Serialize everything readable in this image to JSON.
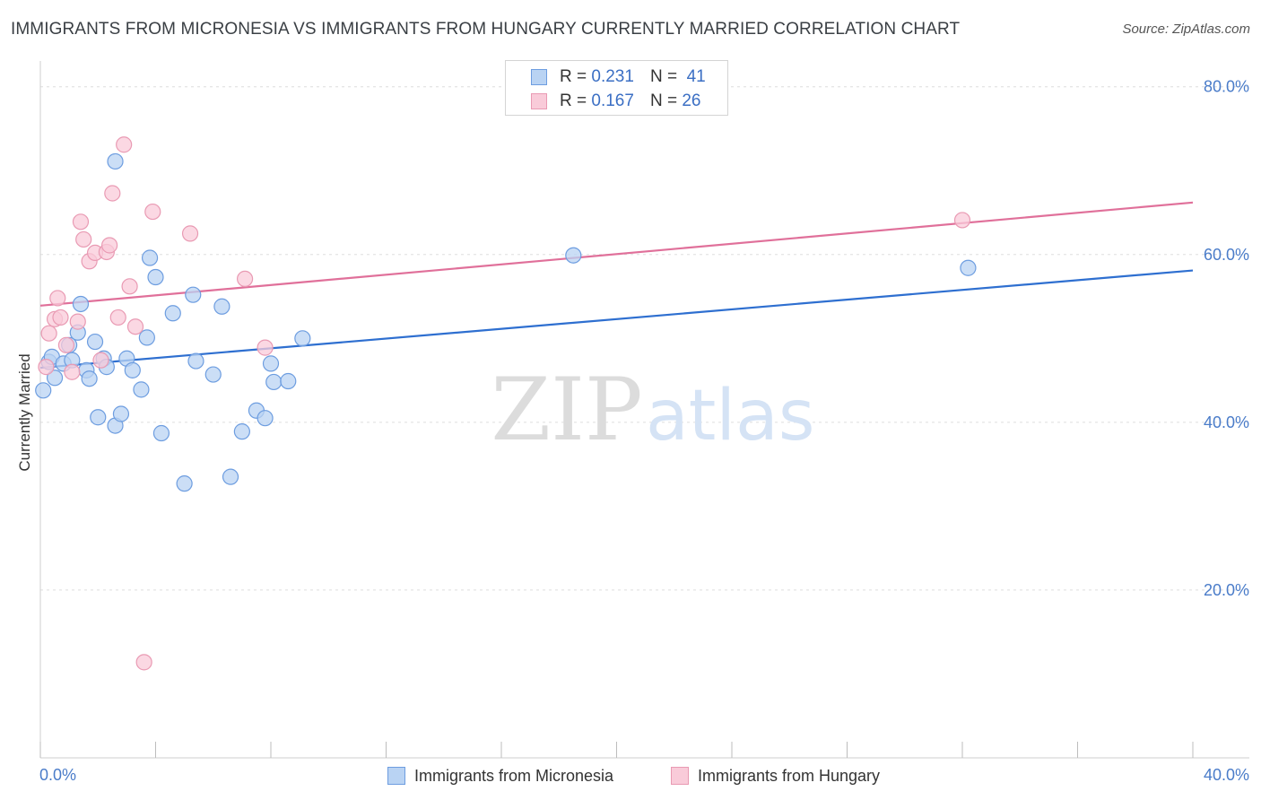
{
  "title": "IMMIGRANTS FROM MICRONESIA VS IMMIGRANTS FROM HUNGARY CURRENTLY MARRIED CORRELATION CHART",
  "source": "Source: ZipAtlas.com",
  "watermark": {
    "zip": "ZIP",
    "atlas": "atlas"
  },
  "legend": {
    "r_label": "R =",
    "n_label": "N =",
    "series": [
      {
        "r": "0.231",
        "n": "41"
      },
      {
        "r": "0.167",
        "n": "26"
      }
    ]
  },
  "colors": {
    "blue_fill": "#b9d3f3",
    "blue_stroke": "#6d9de0",
    "blue_line": "#2e6fd0",
    "pink_fill": "#f9cbd9",
    "pink_stroke": "#e99ab3",
    "pink_line": "#e0709a"
  },
  "chart_data": {
    "type": "scatter",
    "ylabel": "Currently Married",
    "xlim": [
      0,
      40
    ],
    "ylim": [
      0,
      80
    ],
    "x_tick_labels": [
      "0.0%",
      "40.0%"
    ],
    "y_ticks": [
      {
        "value": 20,
        "label": "20.0%"
      },
      {
        "value": 40,
        "label": "40.0%"
      },
      {
        "value": 60,
        "label": "60.0%"
      },
      {
        "value": 80,
        "label": "80.0%"
      }
    ],
    "series": [
      {
        "name": "Immigrants from Micronesia",
        "trend": {
          "x": [
            0,
            40
          ],
          "y": [
            46.5,
            58.1
          ]
        },
        "points": [
          [
            0.1,
            43.8
          ],
          [
            0.3,
            47.2
          ],
          [
            0.4,
            47.8
          ],
          [
            0.5,
            45.3
          ],
          [
            0.8,
            47.0
          ],
          [
            1.0,
            49.2
          ],
          [
            1.1,
            47.4
          ],
          [
            1.3,
            50.7
          ],
          [
            1.4,
            54.1
          ],
          [
            1.6,
            46.2
          ],
          [
            1.7,
            45.2
          ],
          [
            1.9,
            49.6
          ],
          [
            2.0,
            40.6
          ],
          [
            2.2,
            47.6
          ],
          [
            2.3,
            46.6
          ],
          [
            2.6,
            71.1
          ],
          [
            2.6,
            39.6
          ],
          [
            2.8,
            41.0
          ],
          [
            3.0,
            47.6
          ],
          [
            3.2,
            46.2
          ],
          [
            3.5,
            43.9
          ],
          [
            3.7,
            50.1
          ],
          [
            3.8,
            59.6
          ],
          [
            4.0,
            57.3
          ],
          [
            4.2,
            38.7
          ],
          [
            4.6,
            53.0
          ],
          [
            5.0,
            32.7
          ],
          [
            5.3,
            55.2
          ],
          [
            5.4,
            47.3
          ],
          [
            6.0,
            45.7
          ],
          [
            6.3,
            53.8
          ],
          [
            6.6,
            33.5
          ],
          [
            7.0,
            38.9
          ],
          [
            7.5,
            41.4
          ],
          [
            7.8,
            40.5
          ],
          [
            8.0,
            47.0
          ],
          [
            8.1,
            44.8
          ],
          [
            8.6,
            44.9
          ],
          [
            9.1,
            50.0
          ],
          [
            18.5,
            59.9
          ],
          [
            32.2,
            58.4
          ]
        ]
      },
      {
        "name": "Immigrants from Hungary",
        "trend": {
          "x": [
            0,
            40
          ],
          "y": [
            53.9,
            66.2
          ]
        },
        "points": [
          [
            0.2,
            46.6
          ],
          [
            0.3,
            50.6
          ],
          [
            0.5,
            52.3
          ],
          [
            0.6,
            54.8
          ],
          [
            0.7,
            52.5
          ],
          [
            0.9,
            49.2
          ],
          [
            1.1,
            46.0
          ],
          [
            1.3,
            52.0
          ],
          [
            1.4,
            63.9
          ],
          [
            1.5,
            61.8
          ],
          [
            1.7,
            59.2
          ],
          [
            1.9,
            60.2
          ],
          [
            2.1,
            47.4
          ],
          [
            2.3,
            60.3
          ],
          [
            2.4,
            61.1
          ],
          [
            2.5,
            67.3
          ],
          [
            2.7,
            52.5
          ],
          [
            2.9,
            73.1
          ],
          [
            3.1,
            56.2
          ],
          [
            3.3,
            51.4
          ],
          [
            3.6,
            11.4
          ],
          [
            3.9,
            65.1
          ],
          [
            5.2,
            62.5
          ],
          [
            7.1,
            57.1
          ],
          [
            7.8,
            48.9
          ],
          [
            32.0,
            64.1
          ]
        ]
      }
    ]
  }
}
